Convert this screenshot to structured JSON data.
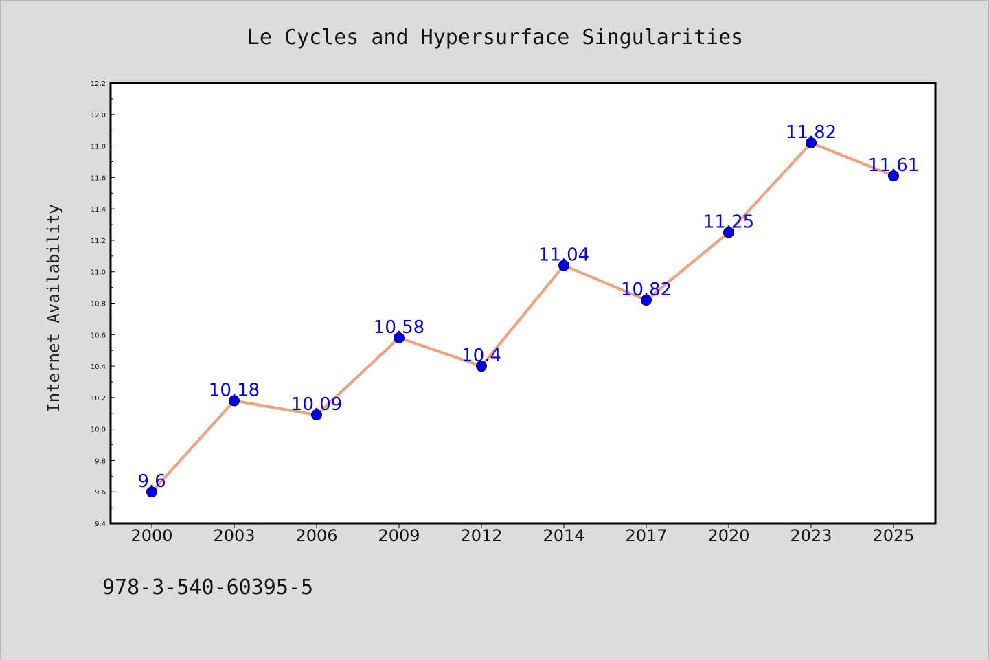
{
  "chart_data": {
    "type": "line",
    "title": "Le Cycles and Hypersurface Singularities",
    "xlabel": "",
    "ylabel": "Internet Availability",
    "categories": [
      "2000",
      "2003",
      "2006",
      "2009",
      "2012",
      "2014",
      "2017",
      "2020",
      "2023",
      "2025"
    ],
    "series": [
      {
        "values": [
          9.6,
          10.18,
          10.09,
          10.58,
          10.4,
          11.04,
          10.82,
          11.25,
          11.82,
          11.61
        ]
      }
    ],
    "data_labels": [
      "9.6",
      "10.18",
      "10.09",
      "10.58",
      "10.4",
      "11.04",
      "10.82",
      "11.25",
      "11.82",
      "11.61"
    ],
    "ylim": [
      9.4,
      12.2
    ],
    "yticks": [
      "9.4",
      "9.6",
      "9.8",
      "10.0",
      "10.2",
      "10.4",
      "10.6",
      "10.8",
      "11.0",
      "11.2",
      "11.4",
      "11.6",
      "11.8",
      "12.0",
      "12.2"
    ],
    "grid": false,
    "legend": "none",
    "colors": {
      "line": "#f4a07e",
      "marker": "#0000ee",
      "label": "#0000ee",
      "background": "#dcdcdc",
      "plot_area": "#ffffff"
    }
  },
  "footnote": "978-3-540-60395-5"
}
